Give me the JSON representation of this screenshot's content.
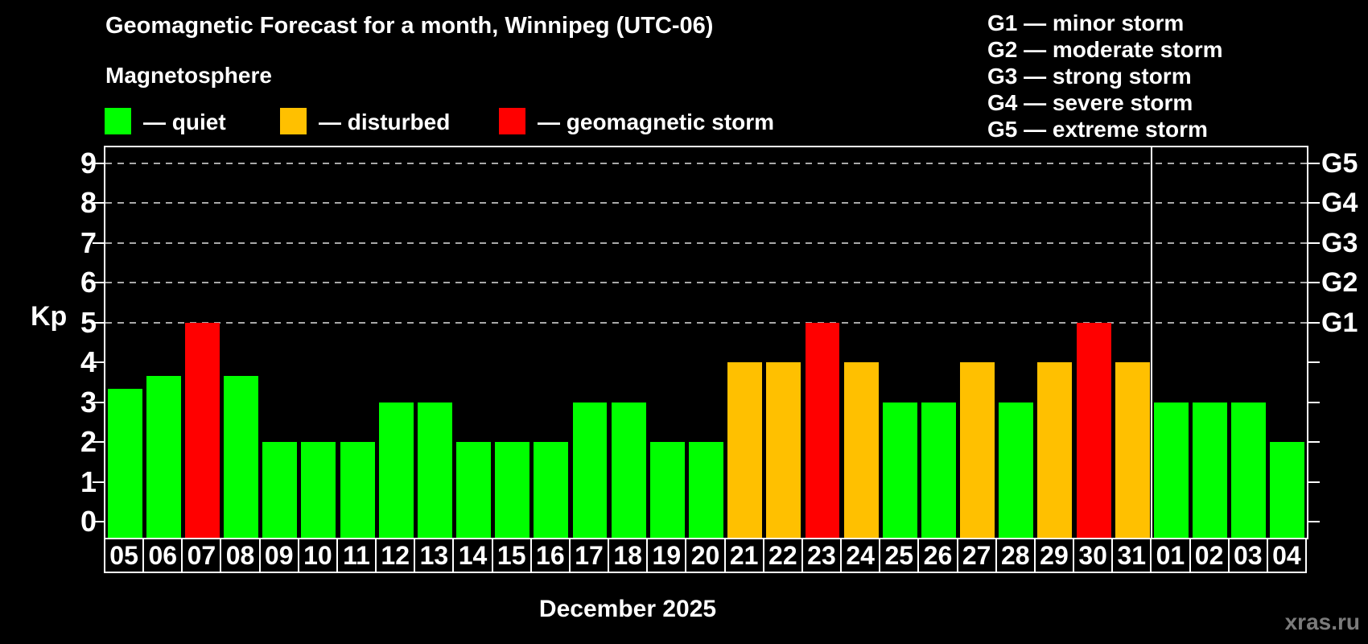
{
  "header": {
    "title": "Geomagnetic Forecast for a month, Winnipeg (UTC-06)",
    "subtitle": "Magnetosphere"
  },
  "legend": {
    "quiet": "— quiet",
    "disturbed": "— disturbed",
    "storm": "— geomagnetic storm"
  },
  "g_legend": [
    "G1 — minor storm",
    "G2 — moderate storm",
    "G3 — strong storm",
    "G4 — severe storm",
    "G5 — extreme storm"
  ],
  "axis": {
    "kp_label": "Kp"
  },
  "watermark": "xras.ru",
  "colors": {
    "quiet": "#00ff00",
    "disturbed": "#ffc000",
    "storm": "#ff0000",
    "axis": "#ffffff",
    "gridline": "#a9a9a9",
    "watermark": "#7b7b7b",
    "background": "#000000"
  },
  "chart_data": {
    "type": "bar",
    "title": "Geomagnetic Forecast for a month, Winnipeg (UTC-06)",
    "xlabel": "December 2025",
    "ylabel": "Kp",
    "ylim": [
      -0.4,
      9.4
    ],
    "y_ticks": [
      0,
      1,
      2,
      3,
      4,
      5,
      6,
      7,
      8,
      9
    ],
    "gridline_levels": [
      5,
      6,
      7,
      8,
      9
    ],
    "right_axis_labels": [
      {
        "label": "G1",
        "kp": 5
      },
      {
        "label": "G2",
        "kp": 6
      },
      {
        "label": "G3",
        "kp": 7
      },
      {
        "label": "G4",
        "kp": 8
      },
      {
        "label": "G5",
        "kp": 9
      }
    ],
    "legend_position": "top-left",
    "grid": "dashed horizontal at G-levels only",
    "month_split_index": 27,
    "categories": [
      "05",
      "06",
      "07",
      "08",
      "09",
      "10",
      "11",
      "12",
      "13",
      "14",
      "15",
      "16",
      "17",
      "18",
      "19",
      "20",
      "21",
      "22",
      "23",
      "24",
      "25",
      "26",
      "27",
      "28",
      "29",
      "30",
      "31",
      "01",
      "02",
      "03",
      "04"
    ],
    "values": [
      3.33,
      3.67,
      5,
      3.67,
      2,
      2,
      2,
      3,
      3,
      2,
      2,
      2,
      3,
      3,
      2,
      2,
      4,
      4,
      5,
      4,
      3,
      3,
      4,
      3,
      4,
      5,
      4,
      3,
      3,
      3,
      2
    ],
    "statuses": [
      "quiet",
      "quiet",
      "storm",
      "quiet",
      "quiet",
      "quiet",
      "quiet",
      "quiet",
      "quiet",
      "quiet",
      "quiet",
      "quiet",
      "quiet",
      "quiet",
      "quiet",
      "quiet",
      "disturbed",
      "disturbed",
      "storm",
      "disturbed",
      "quiet",
      "quiet",
      "disturbed",
      "quiet",
      "disturbed",
      "storm",
      "disturbed",
      "quiet",
      "quiet",
      "quiet",
      "quiet"
    ]
  }
}
